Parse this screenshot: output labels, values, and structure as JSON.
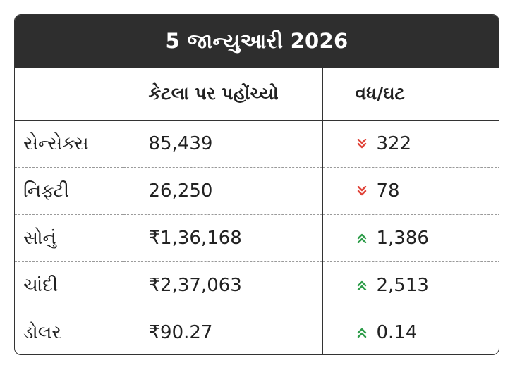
{
  "title": "5 જાન્યુઆરી 2026",
  "headers": {
    "col1": "",
    "col2": "કેટલા પર પહોંચ્યો",
    "col3": "વધ/ઘટ"
  },
  "colors": {
    "down": "#e0443a",
    "up": "#2e9d4a",
    "title_bg": "#2e2e2e"
  },
  "rows": [
    {
      "name": "સેન્સેક્સ",
      "value": "85,439",
      "direction": "down",
      "change": "322"
    },
    {
      "name": "નિફ્ટી",
      "value": "26,250",
      "direction": "down",
      "change": "78"
    },
    {
      "name": "સોનું",
      "value": "₹1,36,168",
      "direction": "up",
      "change": "1,386"
    },
    {
      "name": "ચાંદી",
      "value": "₹2,37,063",
      "direction": "up",
      "change": "2,513"
    },
    {
      "name": "ડોલર",
      "value": "₹90.27",
      "direction": "up",
      "change": "0.14"
    }
  ]
}
